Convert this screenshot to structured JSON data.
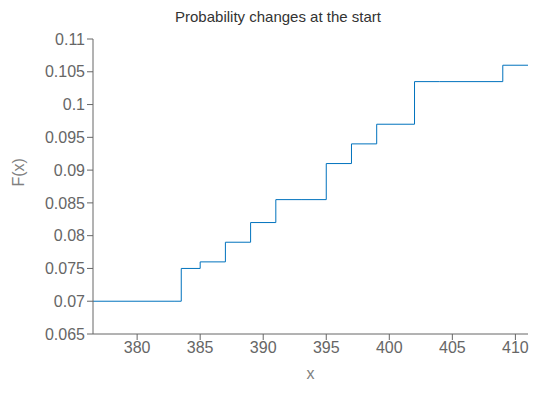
{
  "chart_data": {
    "type": "step",
    "title": "Probability changes at the start",
    "x_label": "x",
    "y_label": "F(x)",
    "x": [
      376.5,
      383,
      383.5,
      385,
      387,
      389,
      391,
      393,
      395,
      397,
      399,
      402,
      404,
      409,
      411
    ],
    "values": [
      0.07,
      0.07,
      0.075,
      0.076,
      0.079,
      0.082,
      0.0855,
      0.0855,
      0.091,
      0.094,
      0.097,
      0.1035,
      0.1035,
      0.106,
      0.106
    ],
    "color": "#0072BD",
    "xlim": [
      376.5,
      411
    ],
    "ylim": [
      0.065,
      0.11
    ],
    "xticks": [
      380,
      385,
      390,
      395,
      400,
      405,
      410
    ],
    "yticks": [
      0.065,
      0.07,
      0.075,
      0.08,
      0.085,
      0.09,
      0.095,
      0.1,
      0.105,
      0.11
    ],
    "grid": false
  }
}
